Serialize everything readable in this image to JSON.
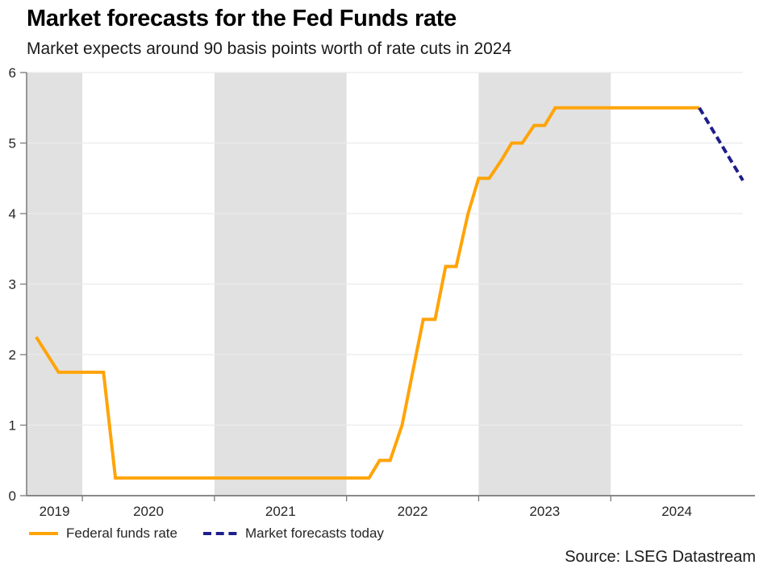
{
  "header": {
    "title": "Market forecasts for the Fed Funds rate",
    "subtitle": "Market expects around 90 basis points worth of rate cuts in 2024"
  },
  "source_note": "Source: LSEG Datastream",
  "chart_data": {
    "type": "line",
    "title": "Market forecasts for the Fed Funds rate",
    "subtitle": "Market expects around 90 basis points worth of rate cuts in 2024",
    "xlabel": "",
    "ylabel": "",
    "x_domain": [
      2019.578,
      2025.0
    ],
    "ylim": [
      0,
      6
    ],
    "grid": true,
    "legend_position": "bottom-left",
    "y_ticks": [
      {
        "value": 0,
        "label": "0"
      },
      {
        "value": 1,
        "label": "1"
      },
      {
        "value": 2,
        "label": "2"
      },
      {
        "value": 3,
        "label": "3"
      },
      {
        "value": 4,
        "label": "4"
      },
      {
        "value": 5,
        "label": "5"
      },
      {
        "value": 6,
        "label": "6"
      }
    ],
    "x_boundary_tick_years": [
      2020,
      2021,
      2022,
      2023,
      2024
    ],
    "x_year_labels": [
      {
        "year": 2019,
        "label": "2019"
      },
      {
        "year": 2020,
        "label": "2020"
      },
      {
        "year": 2021,
        "label": "2021"
      },
      {
        "year": 2022,
        "label": "2022"
      },
      {
        "year": 2023,
        "label": "2023"
      },
      {
        "year": 2024,
        "label": "2024"
      }
    ],
    "shaded_year_bands": [
      2019,
      2021,
      2023
    ],
    "colors": {
      "band": "#e1e1e1",
      "grid": "#ebebeb",
      "axis": "#7a7a7a",
      "tick_label": "#262626",
      "fed_funds_orange": "#ffa408",
      "forecast_navy": "#1e1e8c"
    },
    "series": [
      {
        "name": "Federal funds rate",
        "color": "#ffa408",
        "line_style": "solid",
        "points": [
          [
            2019.65,
            2.25
          ],
          [
            2019.82,
            1.75
          ],
          [
            2020.16,
            1.75
          ],
          [
            2020.25,
            0.25
          ],
          [
            2022.17,
            0.25
          ],
          [
            2022.25,
            0.5
          ],
          [
            2022.33,
            0.5
          ],
          [
            2022.42,
            1.0
          ],
          [
            2022.5,
            1.75
          ],
          [
            2022.58,
            2.5
          ],
          [
            2022.67,
            2.5
          ],
          [
            2022.75,
            3.25
          ],
          [
            2022.83,
            3.25
          ],
          [
            2022.92,
            4.0
          ],
          [
            2023.0,
            4.5
          ],
          [
            2023.08,
            4.5
          ],
          [
            2023.17,
            4.75
          ],
          [
            2023.25,
            5.0
          ],
          [
            2023.33,
            5.0
          ],
          [
            2023.42,
            5.25
          ],
          [
            2023.5,
            5.25
          ],
          [
            2023.58,
            5.5
          ],
          [
            2024.67,
            5.5
          ]
        ]
      },
      {
        "name": "Market forecasts today",
        "color": "#1e1e8c",
        "line_style": "dashed",
        "points": [
          [
            2024.67,
            5.5
          ],
          [
            2025.0,
            4.47
          ]
        ]
      }
    ]
  }
}
